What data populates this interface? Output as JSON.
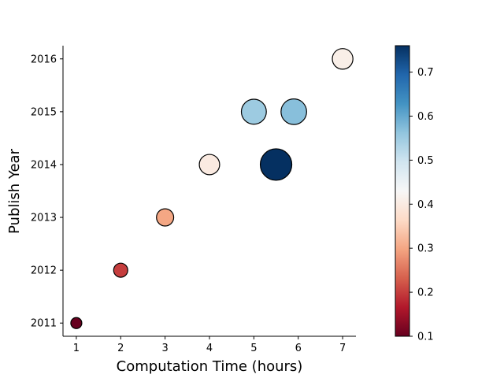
{
  "chart_data": {
    "type": "scatter",
    "title": "",
    "xlabel": "Computation Time (hours)",
    "ylabel": "Publish Year",
    "xlim": [
      0.7,
      7.3
    ],
    "ylim": [
      2010.75,
      2016.25
    ],
    "x_ticks": [
      "1",
      "2",
      "3",
      "4",
      "5",
      "6",
      "7"
    ],
    "y_ticks": [
      "2011",
      "2012",
      "2013",
      "2014",
      "2015",
      "2016"
    ],
    "grid": false,
    "colorbar": {
      "colormap": "RdBu",
      "range": [
        0.1,
        0.76
      ],
      "ticks": [
        "0.1",
        "0.2",
        "0.3",
        "0.4",
        "0.5",
        "0.6",
        "0.7"
      ]
    },
    "points": [
      {
        "x": 1.0,
        "y": 2011,
        "value": 0.1,
        "size": 0.1
      },
      {
        "x": 2.0,
        "y": 2012,
        "value": 0.2,
        "size": 0.2
      },
      {
        "x": 3.0,
        "y": 2013,
        "value": 0.3,
        "size": 0.3
      },
      {
        "x": 4.0,
        "y": 2014,
        "value": 0.4,
        "size": 0.4
      },
      {
        "x": 5.0,
        "y": 2015,
        "value": 0.55,
        "size": 0.55
      },
      {
        "x": 5.5,
        "y": 2014,
        "value": 0.76,
        "size": 0.76
      },
      {
        "x": 5.9,
        "y": 2015,
        "value": 0.57,
        "size": 0.57
      },
      {
        "x": 7.0,
        "y": 2016,
        "value": 0.41,
        "size": 0.41
      }
    ]
  }
}
